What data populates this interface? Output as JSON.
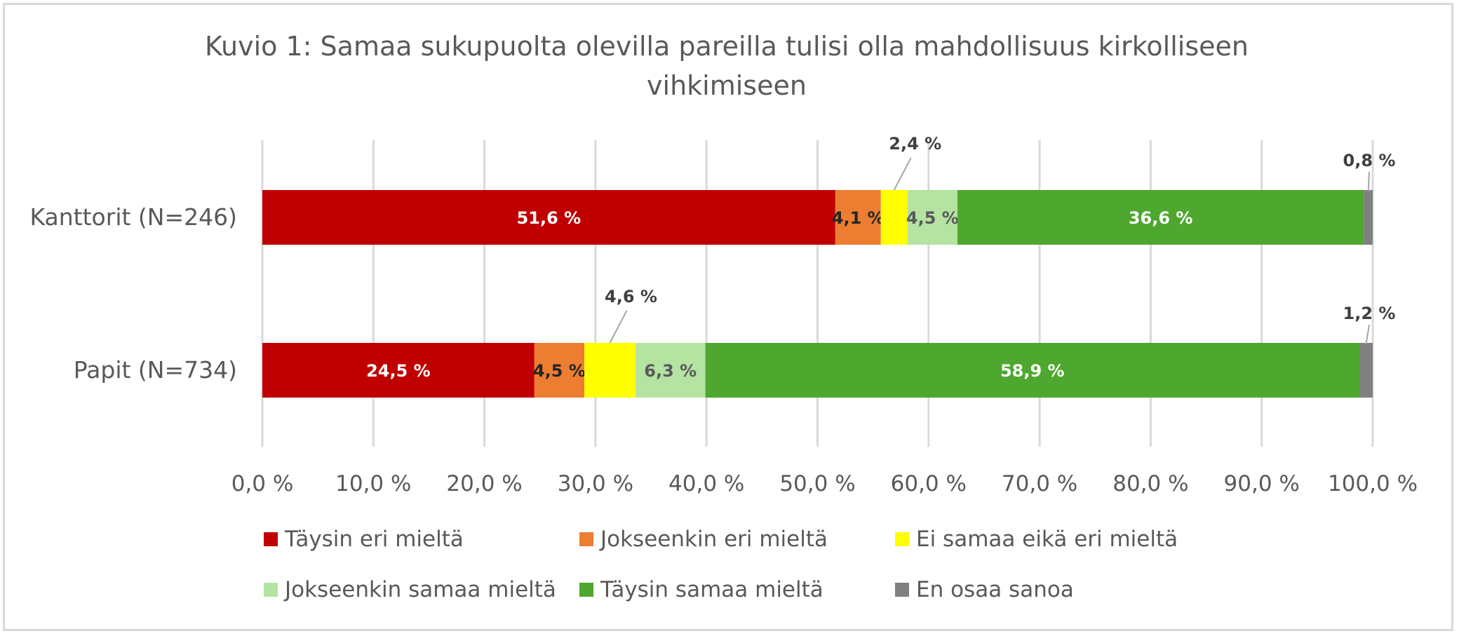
{
  "chart_data": {
    "type": "bar",
    "orientation": "horizontal",
    "stacked": true,
    "title": "Kuvio 1: Samaa sukupuolta olevilla pareilla tulisi olla mahdollisuus kirkolliseen vihkimiseen",
    "title_lines": [
      "Kuvio 1: Samaa sukupuolta olevilla pareilla tulisi olla mahdollisuus kirkolliseen",
      "vihkimiseen"
    ],
    "categories": [
      "Kanttorit (N=246)",
      "Papit (N=734)"
    ],
    "series": [
      {
        "name": "Täysin eri mieltä",
        "color": "#c00000",
        "label_color": "#ffffff",
        "values": [
          51.6,
          24.5
        ],
        "labels": [
          "51,6 %",
          "24,5 %"
        ]
      },
      {
        "name": "Jokseenkin eri mieltä",
        "color": "#ed7d31",
        "label_color": "#262626",
        "values": [
          4.1,
          4.5
        ],
        "labels": [
          "4,1 %",
          "4,5 %"
        ]
      },
      {
        "name": "Ei samaa eikä eri mieltä",
        "color": "#ffff00",
        "label_color": "#404040",
        "values": [
          2.4,
          4.6
        ],
        "labels": [
          "2,4 %",
          "4,6 %"
        ]
      },
      {
        "name": "Jokseenkin samaa mieltä",
        "color": "#b4e3a2",
        "label_color": "#595959",
        "values": [
          4.5,
          6.3
        ],
        "labels": [
          "4,5 %",
          "6,3 %"
        ]
      },
      {
        "name": "Täysin samaa mieltä",
        "color": "#4ea72e",
        "label_color": "#ffffff",
        "values": [
          36.6,
          58.9
        ],
        "labels": [
          "36,6 %",
          "58,9 %"
        ]
      },
      {
        "name": "En osaa sanoa",
        "color": "#808080",
        "label_color": "#404040",
        "values": [
          0.8,
          1.2
        ],
        "labels": [
          "0,8 %",
          "1,2 %"
        ]
      }
    ],
    "xlim": [
      0,
      100
    ],
    "x_ticks": [
      0,
      10,
      20,
      30,
      40,
      50,
      60,
      70,
      80,
      90,
      100
    ],
    "x_tick_labels": [
      "0,0 %",
      "10,0 %",
      "20,0 %",
      "30,0 %",
      "40,0 %",
      "50,0 %",
      "60,0 %",
      "70,0 %",
      "80,0 %",
      "90,0 %",
      "100,0 %"
    ],
    "grid": true,
    "legend_position": "bottom"
  }
}
